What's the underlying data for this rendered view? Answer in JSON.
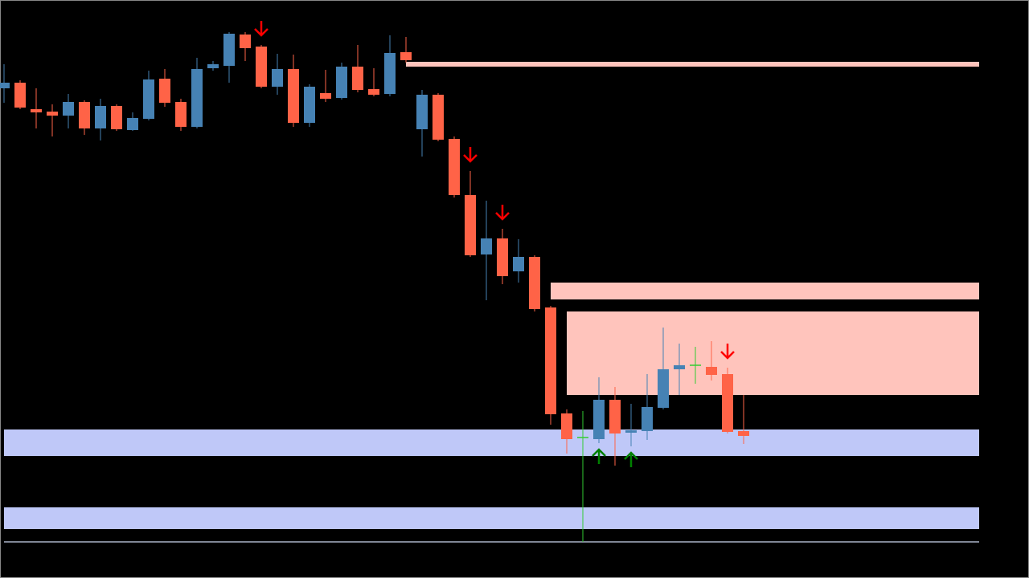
{
  "chart_data": {
    "type": "candlestick",
    "open": [
      610,
      617,
      584,
      581,
      576,
      593,
      560,
      588,
      558,
      572,
      622,
      593,
      562,
      635,
      638,
      677,
      662,
      612,
      634,
      567,
      604,
      598,
      637,
      609,
      603,
      655,
      559,
      602,
      547,
      477,
      403,
      423,
      382,
      400,
      337,
      205,
      175,
      173,
      222,
      181,
      183,
      212,
      260,
      265,
      263,
      254,
      183
    ],
    "high": [
      640,
      620,
      610,
      590,
      603,
      595,
      597,
      590,
      580,
      632,
      634,
      597,
      648,
      644,
      680,
      680,
      664,
      653,
      652,
      615,
      633,
      642,
      664,
      635,
      676,
      674,
      608,
      604,
      550,
      507,
      470,
      435,
      422,
      402,
      339,
      210,
      208,
      250,
      238,
      217,
      254,
      312,
      292,
      288,
      295,
      262,
      228
    ],
    "low": [
      592,
      584,
      560,
      550,
      560,
      552,
      545,
      557,
      557,
      570,
      587,
      557,
      560,
      632,
      617,
      644,
      610,
      602,
      562,
      562,
      593,
      596,
      605,
      600,
      600,
      642,
      525,
      544,
      474,
      400,
      346,
      366,
      368,
      332,
      191,
      155,
      45,
      168,
      140,
      164,
      172,
      210,
      228,
      242,
      246,
      180,
      167
    ],
    "close": [
      617,
      586,
      580,
      576,
      593,
      560,
      588,
      559,
      573,
      621,
      592,
      562,
      634,
      640,
      678,
      660,
      612,
      634,
      567,
      612,
      597,
      637,
      608,
      602,
      654,
      645,
      602,
      546,
      477,
      402,
      423,
      376,
      400,
      335,
      204,
      173,
      175,
      222,
      180,
      184,
      213,
      260,
      265,
      265,
      253,
      182,
      177
    ],
    "up_color": "#4682b4",
    "down_color": "#ff6347",
    "doji_color": "#32cd32",
    "zones": [
      {
        "top": 643,
        "bottom": 637,
        "start": 25,
        "color": "#ffc4bc"
      },
      {
        "top": 368,
        "bottom": 347,
        "start": 34,
        "color": "#ffc4bc"
      },
      {
        "top": 332,
        "bottom": 228,
        "start": 35,
        "color": "#ffc4bc"
      },
      {
        "top": 185,
        "bottom": 152,
        "start": 0,
        "color": "#bfc8f8"
      },
      {
        "top": 88,
        "bottom": 61,
        "start": 0,
        "color": "#bfc8f8"
      }
    ],
    "lines": [
      45
    ],
    "sell_signals": [
      16,
      29,
      31,
      45
    ],
    "sell_color": "#ff0000",
    "buy_signals": [
      37,
      39
    ],
    "buy_color": "#008000",
    "ylim": [
      0,
      720
    ]
  }
}
